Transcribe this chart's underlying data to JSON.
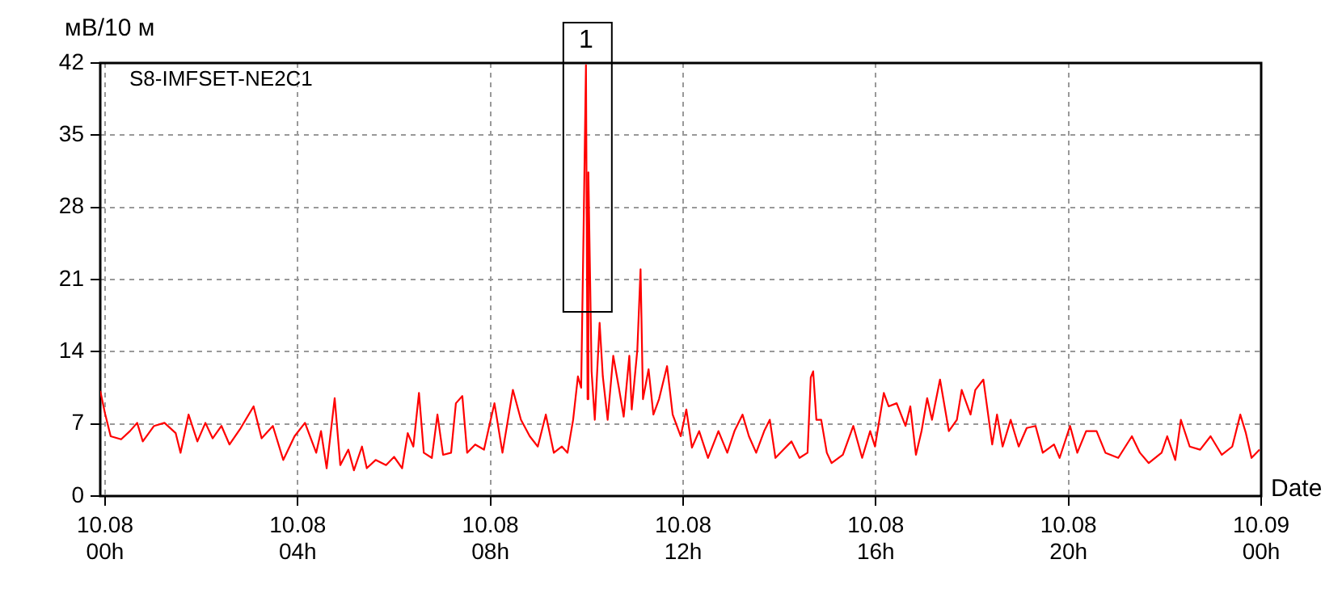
{
  "chart_data": {
    "type": "line",
    "ylabel": "мВ/10 м",
    "xlabel": "Date",
    "annotations": [
      "1"
    ],
    "xlim": [
      "--10-07T23:54",
      "--10-09T00:00"
    ],
    "xticks": [
      {
        "value": "--10-08T00:00",
        "label": "10.08 00h"
      },
      {
        "value": "--10-08T04:00",
        "label": "10.08 04h"
      },
      {
        "value": "--10-08T08:00",
        "label": "10.08 08h"
      },
      {
        "value": "--10-08T12:00",
        "label": "10.08 12h"
      },
      {
        "value": "--10-08T16:00",
        "label": "10.08 16h"
      },
      {
        "value": "--10-08T20:00",
        "label": "10.08 20h"
      },
      {
        "value": "--10-09T00:00",
        "label": "10.09 00h"
      }
    ],
    "ylim": [
      0,
      42
    ],
    "yticks": [
      0,
      7,
      14,
      21,
      28,
      35,
      42
    ],
    "grid": true,
    "marker": "none",
    "line_style": "solid",
    "series": [
      {
        "name": "S8-IMFSET-NE2C1",
        "color": "#ff0000",
        "x": [
          "--10-07T23:54",
          "--10-08T00:00",
          "--10-08T00:07",
          "--10-08T00:20",
          "--10-08T00:31",
          "--10-08T00:40",
          "--10-08T00:47",
          "--10-08T01:01",
          "--10-08T01:14",
          "--10-08T01:28",
          "--10-08T01:34",
          "--10-08T01:44",
          "--10-08T01:55",
          "--10-08T02:05",
          "--10-08T02:14",
          "--10-08T02:25",
          "--10-08T02:35",
          "--10-08T02:49",
          "--10-08T03:05",
          "--10-08T03:15",
          "--10-08T03:29",
          "--10-08T03:42",
          "--10-08T03:56",
          "--10-08T04:09",
          "--10-08T04:23",
          "--10-08T04:29",
          "--10-08T04:36",
          "--10-08T04:46",
          "--10-08T04:53",
          "--10-08T05:03",
          "--10-08T05:10",
          "--10-08T05:20",
          "--10-08T05:26",
          "--10-08T05:37",
          "--10-08T05:50",
          "--10-08T06:00",
          "--10-08T06:10",
          "--10-08T06:17",
          "--10-08T06:24",
          "--10-08T06:31",
          "--10-08T06:37",
          "--10-08T06:47",
          "--10-08T06:54",
          "--10-08T07:01",
          "--10-08T07:11",
          "--10-08T07:17",
          "--10-08T07:25",
          "--10-08T07:31",
          "--10-08T07:41",
          "--10-08T07:52",
          "--10-08T07:58",
          "--10-08T08:05",
          "--10-08T08:15",
          "--10-08T08:28",
          "--10-08T08:38",
          "--10-08T08:49",
          "--10-08T08:59",
          "--10-08T09:09",
          "--10-08T09:19",
          "--10-08T09:29",
          "--10-08T09:36",
          "--10-08T09:43",
          "--10-08T09:49",
          "--10-08T09:53",
          "--10-08T09:56",
          "--10-08T09:59",
          "--10-08T10:01",
          "--10-08T10:02",
          "--10-08T10:06",
          "--10-08T10:10",
          "--10-08T10:16",
          "--10-08T10:20",
          "--10-08T10:26",
          "--10-08T10:33",
          "--10-08T10:40",
          "--10-08T10:46",
          "--10-08T10:53",
          "--10-08T10:56",
          "--10-08T11:03",
          "--10-08T11:07",
          "--10-08T11:10",
          "--10-08T11:17",
          "--10-08T11:23",
          "--10-08T11:30",
          "--10-08T11:40",
          "--10-08T11:47",
          "--10-08T11:57",
          "--10-08T12:04",
          "--10-08T12:11",
          "--10-08T12:20",
          "--10-08T12:31",
          "--10-08T12:44",
          "--10-08T12:55",
          "--10-08T13:04",
          "--10-08T13:14",
          "--10-08T13:22",
          "--10-08T13:31",
          "--10-08T13:41",
          "--10-08T13:48",
          "--10-08T13:55",
          "--10-08T14:05",
          "--10-08T14:15",
          "--10-08T14:25",
          "--10-08T14:35",
          "--10-08T14:39",
          "--10-08T14:42",
          "--10-08T14:46",
          "--10-08T14:52",
          "--10-08T14:59",
          "--10-08T15:05",
          "--10-08T15:19",
          "--10-08T15:32",
          "--10-08T15:43",
          "--10-08T15:53",
          "--10-08T15:59",
          "--10-08T16:10",
          "--10-08T16:16",
          "--10-08T16:26",
          "--10-08T16:37",
          "--10-08T16:43",
          "--10-08T16:50",
          "--10-08T16:57",
          "--10-08T17:04",
          "--10-08T17:10",
          "--10-08T17:20",
          "--10-08T17:31",
          "--10-08T17:41",
          "--10-08T17:47",
          "--10-08T17:58",
          "--10-08T18:04",
          "--10-08T18:14",
          "--10-08T18:25",
          "--10-08T18:31",
          "--10-08T18:38",
          "--10-08T18:48",
          "--10-08T18:58",
          "--10-08T19:08",
          "--10-08T19:19",
          "--10-08T19:28",
          "--10-08T19:42",
          "--10-08T19:49",
          "--10-08T20:02",
          "--10-08T20:11",
          "--10-08T20:22",
          "--10-08T20:35",
          "--10-08T20:46",
          "--10-08T21:02",
          "--10-08T21:19",
          "--10-08T21:29",
          "--10-08T21:40",
          "--10-08T21:56",
          "--10-08T22:03",
          "--10-08T22:13",
          "--10-08T22:20",
          "--10-08T22:31",
          "--10-08T22:44",
          "--10-08T22:57",
          "--10-08T23:11",
          "--10-08T23:24",
          "--10-08T23:34",
          "--10-08T23:41",
          "--10-08T23:48",
          "--10-08T23:58"
        ],
        "values": [
          10.2,
          8,
          5.8,
          5.5,
          6.3,
          7.1,
          5.3,
          6.8,
          7.1,
          6.1,
          4.2,
          7.9,
          5.3,
          7.1,
          5.6,
          6.8,
          5,
          6.6,
          8.7,
          5.6,
          6.8,
          3.5,
          5.8,
          7.1,
          4.2,
          6.3,
          2.7,
          9.5,
          3,
          4.5,
          2.5,
          4.8,
          2.7,
          3.5,
          3,
          3.8,
          2.7,
          6.1,
          4.8,
          10,
          4.2,
          3.7,
          7.9,
          4,
          4.2,
          9,
          9.7,
          4.2,
          5,
          4.5,
          6.6,
          9,
          4.2,
          10.3,
          7.4,
          5.8,
          4.8,
          7.9,
          4.2,
          4.8,
          4.2,
          7.4,
          11.6,
          10.5,
          25.7,
          41.8,
          9.4,
          31.4,
          12.1,
          7.4,
          16.8,
          11.6,
          7.4,
          13.6,
          10.5,
          7.7,
          13.6,
          8.4,
          14.2,
          22,
          9.4,
          12.3,
          7.9,
          9.4,
          12.6,
          7.9,
          5.8,
          8.4,
          4.7,
          6.3,
          3.7,
          6.3,
          4.2,
          6.3,
          7.9,
          5.8,
          4.2,
          6.3,
          7.4,
          3.7,
          4.5,
          5.3,
          3.7,
          4.2,
          11.5,
          12.1,
          7.4,
          7.4,
          4.2,
          3.2,
          4,
          6.8,
          3.7,
          6.3,
          4.8,
          10,
          8.7,
          9,
          6.8,
          8.7,
          4,
          6.3,
          9.5,
          7.4,
          11.3,
          6.3,
          7.4,
          10.3,
          7.9,
          10.3,
          11.3,
          5,
          7.9,
          4.8,
          7.4,
          4.8,
          6.6,
          6.8,
          4.2,
          5,
          3.7,
          6.8,
          4.2,
          6.3,
          6.3,
          4.2,
          3.7,
          5.8,
          4.2,
          3.2,
          4.2,
          5.8,
          3.5,
          7.4,
          4.8,
          4.5,
          5.8,
          4,
          4.8,
          7.9,
          6.1,
          3.7,
          4.5
        ]
      }
    ]
  }
}
